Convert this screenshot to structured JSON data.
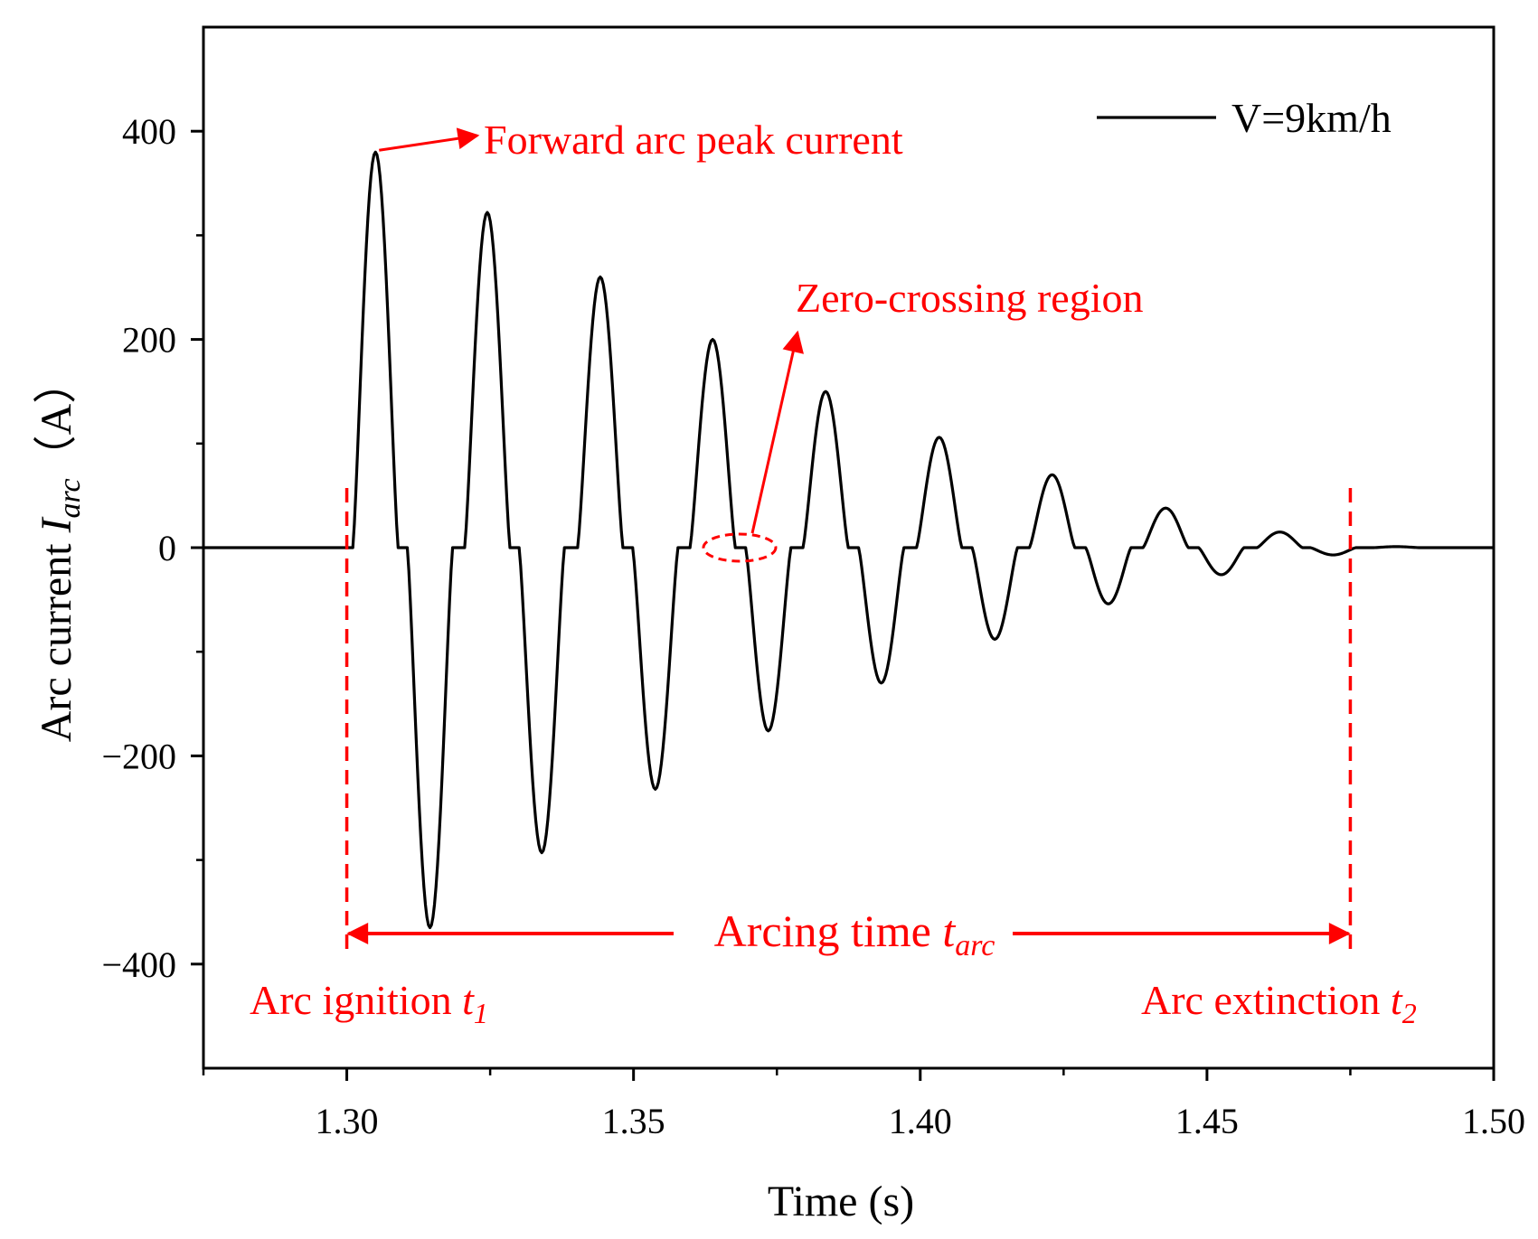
{
  "chart_data": {
    "type": "line",
    "xlabel": "Time (s)",
    "ylabel": {
      "prefix": "Arc current ",
      "symbol": "I",
      "subscript": "arc",
      "unit": "（A）"
    },
    "xlim": [
      1.275,
      1.5
    ],
    "ylim": [
      -500,
      500
    ],
    "xticks": [
      1.3,
      1.35,
      1.4,
      1.45,
      1.5
    ],
    "xtick_labels": [
      "1.30",
      "1.35",
      "1.40",
      "1.45",
      "1.50"
    ],
    "yticks": [
      -400,
      -200,
      0,
      200,
      400
    ],
    "ytick_labels": [
      "−400",
      "−200",
      "0",
      "200",
      "400"
    ],
    "legend": {
      "label": "V=9km/h",
      "position": "top-right"
    },
    "series": [
      {
        "name": "V=9km/h",
        "color": "#000000",
        "waveform": {
          "ignition": 1.3,
          "extinction": 1.475,
          "period": 0.0195,
          "end": 1.5
        },
        "peaks": [
          {
            "t": 1.305,
            "v": 380
          },
          {
            "t": 1.3145,
            "v": -365
          },
          {
            "t": 1.3245,
            "v": 322
          },
          {
            "t": 1.334,
            "v": -293
          },
          {
            "t": 1.3442,
            "v": 260
          },
          {
            "t": 1.3538,
            "v": -232
          },
          {
            "t": 1.3638,
            "v": 200
          },
          {
            "t": 1.3735,
            "v": -176
          },
          {
            "t": 1.3835,
            "v": 150
          },
          {
            "t": 1.3932,
            "v": -130
          },
          {
            "t": 1.4033,
            "v": 106
          },
          {
            "t": 1.413,
            "v": -88
          },
          {
            "t": 1.423,
            "v": 70
          },
          {
            "t": 1.4328,
            "v": -54
          },
          {
            "t": 1.4428,
            "v": 38
          },
          {
            "t": 1.4525,
            "v": -26
          },
          {
            "t": 1.4627,
            "v": 15
          },
          {
            "t": 1.472,
            "v": -7
          },
          {
            "t": 1.483,
            "v": 1
          }
        ]
      }
    ],
    "annotations": {
      "peak_label": "Forward arc peak current",
      "zero_crossing_label": "Zero-crossing region",
      "arcing_time": {
        "text": "Arcing time ",
        "symbol": "t",
        "subscript": "arc"
      },
      "ignition": {
        "text": "Arc ignition ",
        "symbol": "t",
        "subscript": "1",
        "t": 1.3
      },
      "extinction": {
        "text": "Arc extinction ",
        "symbol": "t",
        "subscript": "2",
        "t": 1.475
      },
      "color": "#ff0000"
    }
  }
}
